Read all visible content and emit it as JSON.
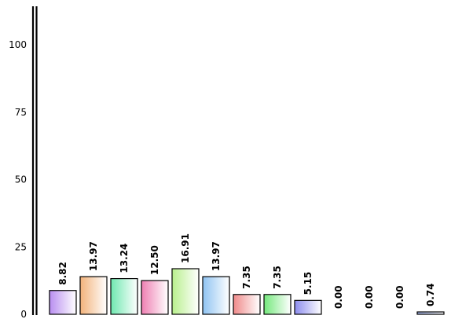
{
  "chart_data": {
    "type": "bar",
    "title": "",
    "xlabel": "",
    "ylabel": "",
    "ylim": [
      0,
      115
    ],
    "grid": false,
    "legend": "none",
    "yticks": [
      {
        "value": 0,
        "label": "0"
      },
      {
        "value": 25,
        "label": "25"
      },
      {
        "value": 50,
        "label": "50"
      },
      {
        "value": 75,
        "label": "75"
      },
      {
        "value": 100,
        "label": "100"
      }
    ],
    "values": [
      8.82,
      13.97,
      13.24,
      12.5,
      16.91,
      13.97,
      7.35,
      7.35,
      5.15,
      0.0,
      0.0,
      0.0,
      0.74
    ],
    "data_labels": [
      "8.82",
      "13.97",
      "13.24",
      "12.50",
      "16.91",
      "13.97",
      "7.35",
      "7.35",
      "5.15",
      "0.00",
      "0.00",
      "0.00",
      "0.74"
    ],
    "bar_colors": [
      "#b98ef0",
      "#f2b27a",
      "#6fe8b0",
      "#ee7fb2",
      "#b8ef8c",
      "#8fc3f2",
      "#ef8a8a",
      "#74e87c",
      "#8c8cee",
      "#b0b0f0",
      "#b0b0f0",
      "#b0b0f0",
      "#9fb0e8"
    ]
  }
}
